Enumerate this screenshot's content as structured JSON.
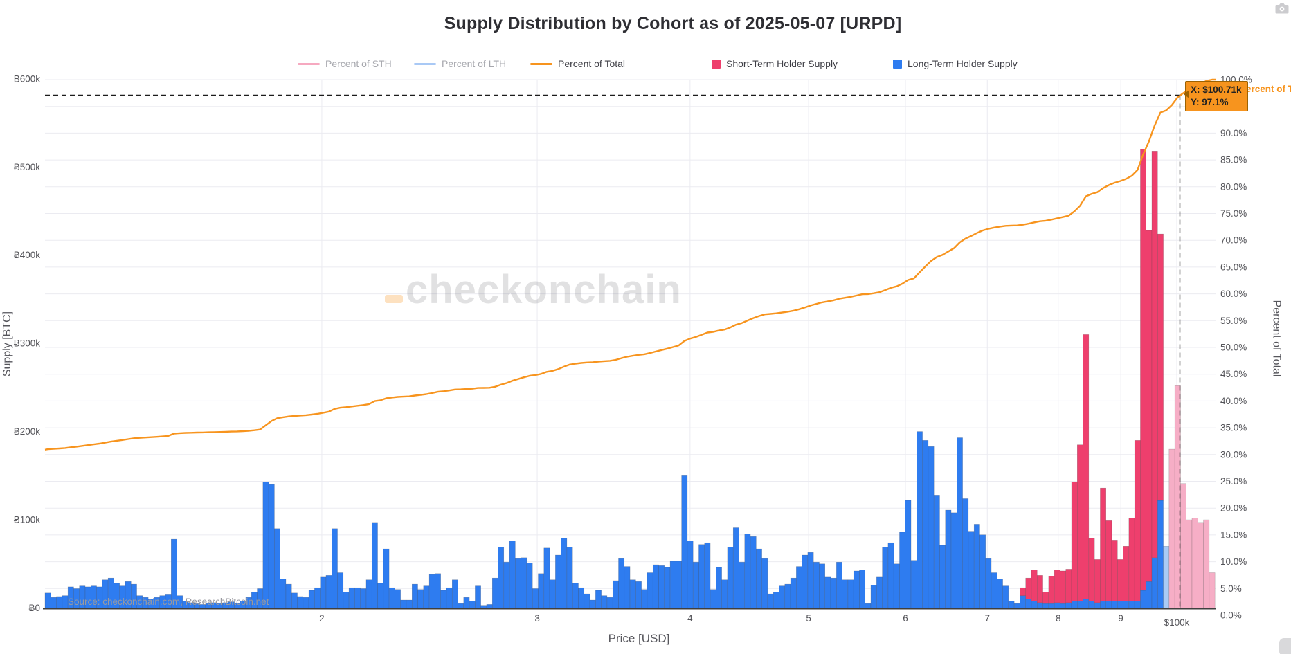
{
  "title": "Supply Distribution by Cohort as of 2025-05-07 [URPD]",
  "legend": {
    "items": [
      {
        "label": "Percent of STH",
        "swatch": "line",
        "color": "#f6a9c0",
        "text_color": "#a6a7ad",
        "active": false
      },
      {
        "label": "Percent of LTH",
        "swatch": "line",
        "color": "#a9c9f5",
        "text_color": "#a6a7ad",
        "active": false
      },
      {
        "label": "Percent of Total",
        "swatch": "line",
        "color": "#f7941e",
        "text_color": "#3f3f46",
        "active": true
      },
      {
        "label": "Short-Term Holder Supply",
        "swatch": "square",
        "color": "#ee3f6d",
        "text_color": "#3f3f46",
        "active": true
      },
      {
        "label": "Long-Term Holder Supply",
        "swatch": "square",
        "color": "#2e7cf0",
        "text_color": "#3f3f46",
        "active": true
      }
    ]
  },
  "axes": {
    "left_title": "Supply [BTC]",
    "left_ticks": [
      "Ƀ0",
      "Ƀ100k",
      "Ƀ200k",
      "Ƀ300k",
      "Ƀ400k",
      "Ƀ500k",
      "Ƀ600k"
    ],
    "right_title": "Percent of Total",
    "right_ticks": [
      "0.0%",
      "5.0%",
      "10.0%",
      "15.0%",
      "20.0%",
      "25.0%",
      "30.0%",
      "35.0%",
      "40.0%",
      "45.0%",
      "50.0%",
      "55.0%",
      "60.0%",
      "65.0%",
      "70.0%",
      "75.0%",
      "80.0%",
      "85.0%",
      "90.0%",
      "95.0%",
      "100.0%"
    ],
    "bottom_title": "Price [USD]",
    "x_ticks": [
      {
        "label": "2",
        "price_k": 20
      },
      {
        "label": "3",
        "price_k": 30
      },
      {
        "label": "4",
        "price_k": 40
      },
      {
        "label": "5",
        "price_k": 50
      },
      {
        "label": "6",
        "price_k": 60
      },
      {
        "label": "7",
        "price_k": 70
      },
      {
        "label": "8",
        "price_k": 80
      },
      {
        "label": "9",
        "price_k": 90
      },
      {
        "label": "$100k",
        "price_k": 100
      }
    ]
  },
  "tooltip": {
    "line1": "X: $100.71k",
    "line2": "Y: 97.1%"
  },
  "hover_axis_label": "Percent of Total",
  "source": "Source: checkonchain.com, ResearchBitcoin.net",
  "watermark": "checkonchain",
  "colors": {
    "lth_bar": "#2e7cf0",
    "sth_bar": "#ee3f6d",
    "lth_bar_dim": "#a9caf6",
    "sth_bar_dim": "#f6aec6",
    "total_line": "#f7941e",
    "grid": "#ebebf1",
    "axis_line": "#3f3f3f",
    "tick_text": "#545459",
    "dashed": "#1c1c1c"
  },
  "chart_data": {
    "type": "bar+line",
    "title": "Supply Distribution by Cohort as of 2025-05-07 [URPD]",
    "x_axis": {
      "label": "Price [USD]",
      "scale": "log",
      "range_usd": [
        11900,
        104000
      ]
    },
    "y_axis_left": {
      "label": "Supply [BTC]",
      "range": [
        0,
        600000
      ],
      "tick_step": 100000
    },
    "y_axis_right": {
      "label": "Percent of Total",
      "range_pct": [
        0,
        100
      ],
      "tick_step_pct": 5,
      "grid": true
    },
    "bars": {
      "note": "URPD price buckets, log-spaced; values in thousands of BTC, stacked LTH below STH",
      "first_bucket_price_usd": 11880,
      "bucket_ratio": 1.0109,
      "count": 204,
      "dim_from_index": 195,
      "series": [
        {
          "name": "Long-Term Holder Supply",
          "unit": "kBTC",
          "values": [
            17,
            12,
            13,
            14,
            24,
            22,
            25,
            24,
            25,
            24,
            32,
            34,
            28,
            25,
            30,
            27,
            14,
            12,
            10,
            12,
            14,
            15,
            78,
            14,
            8,
            6,
            5,
            4,
            5,
            6,
            5,
            6,
            7,
            5,
            8,
            12,
            18,
            22,
            143,
            140,
            90,
            33,
            27,
            17,
            13,
            12,
            20,
            23,
            35,
            37,
            90,
            40,
            18,
            23,
            23,
            22,
            32,
            97,
            28,
            67,
            23,
            21,
            9,
            9,
            27,
            21,
            25,
            38,
            39,
            20,
            23,
            32,
            5,
            12,
            8,
            25,
            3,
            4,
            34,
            69,
            52,
            76,
            56,
            57,
            51,
            22,
            39,
            68,
            32,
            60,
            79,
            69,
            28,
            23,
            16,
            9,
            20,
            14,
            12,
            31,
            56,
            47,
            32,
            30,
            21,
            40,
            49,
            48,
            46,
            53,
            53,
            150,
            76,
            52,
            72,
            74,
            21,
            46,
            32,
            69,
            91,
            52,
            84,
            81,
            67,
            56,
            16,
            18,
            25,
            27,
            34,
            47,
            60,
            63,
            52,
            50,
            35,
            34,
            52,
            32,
            32,
            42,
            43,
            5,
            26,
            35,
            69,
            74,
            50,
            86,
            122,
            54,
            200,
            190,
            183,
            128,
            71,
            111,
            108,
            193,
            124,
            87,
            95,
            83,
            56,
            40,
            33,
            25,
            8,
            5,
            14,
            10,
            8,
            6,
            5,
            5,
            6,
            5,
            6,
            8,
            8,
            10,
            8,
            6,
            8,
            8,
            8,
            8,
            8,
            8,
            8,
            20,
            30,
            57,
            122,
            70,
            0,
            0,
            0,
            0,
            0,
            0,
            0,
            0
          ]
        },
        {
          "name": "Short-Term Holder Supply",
          "unit": "kBTC",
          "values": [
            0,
            0,
            0,
            0,
            0,
            0,
            0,
            0,
            0,
            0,
            0,
            0,
            0,
            0,
            0,
            0,
            0,
            0,
            0,
            0,
            0,
            0,
            0,
            0,
            0,
            0,
            0,
            0,
            0,
            0,
            0,
            0,
            0,
            0,
            0,
            0,
            0,
            0,
            0,
            0,
            0,
            0,
            0,
            0,
            0,
            0,
            0,
            0,
            0,
            0,
            0,
            0,
            0,
            0,
            0,
            0,
            0,
            0,
            0,
            0,
            0,
            0,
            0,
            0,
            0,
            0,
            0,
            0,
            0,
            0,
            0,
            0,
            0,
            0,
            0,
            0,
            0,
            0,
            0,
            0,
            0,
            0,
            0,
            0,
            0,
            0,
            0,
            0,
            0,
            0,
            0,
            0,
            0,
            0,
            0,
            0,
            0,
            0,
            0,
            0,
            0,
            0,
            0,
            0,
            0,
            0,
            0,
            0,
            0,
            0,
            0,
            0,
            0,
            0,
            0,
            0,
            0,
            0,
            0,
            0,
            0,
            0,
            0,
            0,
            0,
            0,
            0,
            0,
            0,
            0,
            0,
            0,
            0,
            0,
            0,
            0,
            0,
            0,
            0,
            0,
            0,
            0,
            0,
            0,
            0,
            0,
            0,
            0,
            0,
            0,
            0,
            0,
            0,
            0,
            0,
            0,
            0,
            0,
            0,
            0,
            0,
            0,
            0,
            0,
            0,
            0,
            0,
            0,
            0,
            0,
            9,
            24,
            35,
            31,
            13,
            31,
            37,
            37,
            38,
            135,
            177,
            300,
            71,
            49,
            128,
            91,
            69,
            47,
            62,
            94,
            182,
            500,
            398,
            461,
            302,
            0,
            180,
            252,
            141,
            100,
            102,
            97,
            100,
            40
          ]
        }
      ]
    },
    "line": {
      "name": "Percent of Total",
      "description": "cumulative percent of circulating supply with cost basis below price",
      "start_pct_at_left_edge": 30.9,
      "end_pct_at_right_edge": 100.0,
      "cursor_point": {
        "price_label": "$100.71k",
        "pct": 97.1
      }
    },
    "legend_position": "top",
    "disabled_traces": [
      "Percent of STH",
      "Percent of LTH"
    ]
  }
}
